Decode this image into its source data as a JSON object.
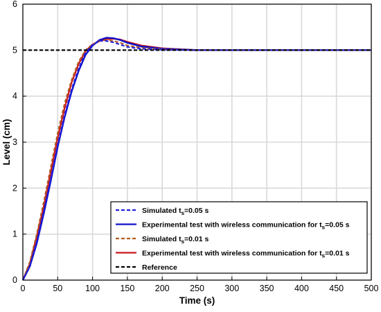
{
  "chart_data": {
    "type": "line",
    "xlabel": "Time (s)",
    "ylabel": "Level (cm)",
    "xlim": [
      0,
      500
    ],
    "ylim": [
      0,
      6
    ],
    "xticks": [
      0,
      50,
      100,
      150,
      200,
      250,
      300,
      350,
      400,
      450,
      500
    ],
    "yticks": [
      0,
      1,
      2,
      3,
      4,
      5,
      6
    ],
    "grid": true,
    "legend_position": "bottom-right",
    "series": [
      {
        "name": "Simulated t_s=0.05 s",
        "legend": {
          "pre": "Simulated t",
          "sub": "s",
          "post": "=0.05 s"
        },
        "color": "#1f1fe0",
        "style": "dashed",
        "x": [
          0,
          10,
          20,
          30,
          40,
          50,
          60,
          70,
          80,
          90,
          100,
          110,
          120,
          130,
          140,
          150,
          170,
          200,
          250,
          300,
          400,
          500
        ],
        "y": [
          0,
          0.3,
          0.85,
          1.5,
          2.2,
          2.95,
          3.6,
          4.15,
          4.6,
          4.95,
          5.12,
          5.2,
          5.2,
          5.17,
          5.12,
          5.07,
          5.03,
          5.01,
          5.0,
          5.0,
          5.0,
          5.0
        ]
      },
      {
        "name": "Experimental test with wireless communication for t_s=0.05 s",
        "legend": {
          "pre": "Experimental test with wireless communication for t",
          "sub": "s",
          "post": "=0.05 s"
        },
        "color": "#1010c8",
        "style": "solid",
        "x": [
          0,
          10,
          20,
          30,
          40,
          50,
          60,
          70,
          80,
          90,
          100,
          110,
          120,
          130,
          140,
          150,
          170,
          200,
          250,
          300,
          400,
          500
        ],
        "y": [
          0,
          0.3,
          0.8,
          1.45,
          2.15,
          2.9,
          3.55,
          4.1,
          4.55,
          4.9,
          5.1,
          5.22,
          5.27,
          5.26,
          5.22,
          5.16,
          5.08,
          5.03,
          5.0,
          5.0,
          5.0,
          5.0
        ]
      },
      {
        "name": "Simulated t_s=0.01 s",
        "legend": {
          "pre": "Simulated t",
          "sub": "s",
          "post": "=0.01 s"
        },
        "color": "#b25a1e",
        "style": "dashed",
        "x": [
          0,
          10,
          20,
          30,
          40,
          50,
          60,
          70,
          80,
          90,
          100,
          110,
          120,
          130,
          140,
          150,
          170,
          200,
          250,
          300,
          400,
          500
        ],
        "y": [
          0,
          0.4,
          1.0,
          1.7,
          2.45,
          3.2,
          3.85,
          4.35,
          4.75,
          5.0,
          5.13,
          5.2,
          5.22,
          5.2,
          5.16,
          5.1,
          5.05,
          5.02,
          5.0,
          5.0,
          5.0,
          5.0
        ]
      },
      {
        "name": "Experimental test with wireless communication for t_s=0.01 s",
        "legend": {
          "pre": "Experimental test with wireless communication for t",
          "sub": "s",
          "post": "=0.01 s"
        },
        "color": "#c8181e",
        "style": "solid",
        "x": [
          0,
          10,
          20,
          30,
          40,
          50,
          60,
          70,
          80,
          90,
          100,
          110,
          120,
          130,
          140,
          150,
          170,
          200,
          250,
          300,
          400,
          500
        ],
        "y": [
          0,
          0.35,
          0.95,
          1.6,
          2.35,
          3.1,
          3.75,
          4.3,
          4.7,
          4.98,
          5.12,
          5.2,
          5.24,
          5.25,
          5.23,
          5.18,
          5.1,
          5.04,
          5.0,
          5.0,
          5.0,
          5.0
        ]
      },
      {
        "name": "Reference",
        "legend": {
          "pre": "Reference",
          "sub": "",
          "post": ""
        },
        "color": "#000000",
        "style": "dashed",
        "x": [
          0,
          500
        ],
        "y": [
          5,
          5
        ]
      }
    ]
  }
}
